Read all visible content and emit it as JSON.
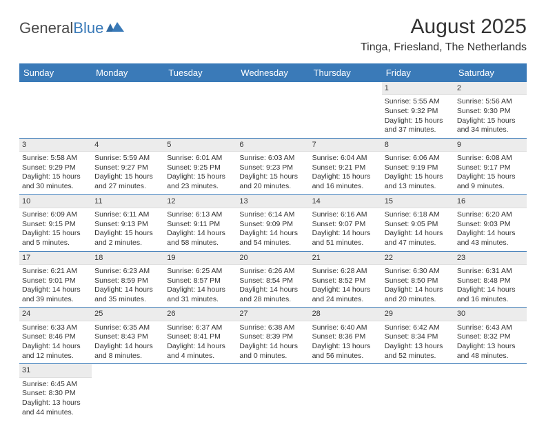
{
  "logo": {
    "text_a": "General",
    "text_b": "Blue"
  },
  "title": "August 2025",
  "location": "Tinga, Friesland, The Netherlands",
  "colors": {
    "header_bg": "#3a7ab8",
    "header_text": "#ffffff",
    "daynum_bg": "#ececec",
    "text": "#333333",
    "row_border": "#3a7ab8"
  },
  "day_names": [
    "Sunday",
    "Monday",
    "Tuesday",
    "Wednesday",
    "Thursday",
    "Friday",
    "Saturday"
  ],
  "weeks": [
    [
      {
        "n": "",
        "sr": "",
        "ss": "",
        "dl": ""
      },
      {
        "n": "",
        "sr": "",
        "ss": "",
        "dl": ""
      },
      {
        "n": "",
        "sr": "",
        "ss": "",
        "dl": ""
      },
      {
        "n": "",
        "sr": "",
        "ss": "",
        "dl": ""
      },
      {
        "n": "",
        "sr": "",
        "ss": "",
        "dl": ""
      },
      {
        "n": "1",
        "sr": "Sunrise: 5:55 AM",
        "ss": "Sunset: 9:32 PM",
        "dl": "Daylight: 15 hours and 37 minutes."
      },
      {
        "n": "2",
        "sr": "Sunrise: 5:56 AM",
        "ss": "Sunset: 9:30 PM",
        "dl": "Daylight: 15 hours and 34 minutes."
      }
    ],
    [
      {
        "n": "3",
        "sr": "Sunrise: 5:58 AM",
        "ss": "Sunset: 9:29 PM",
        "dl": "Daylight: 15 hours and 30 minutes."
      },
      {
        "n": "4",
        "sr": "Sunrise: 5:59 AM",
        "ss": "Sunset: 9:27 PM",
        "dl": "Daylight: 15 hours and 27 minutes."
      },
      {
        "n": "5",
        "sr": "Sunrise: 6:01 AM",
        "ss": "Sunset: 9:25 PM",
        "dl": "Daylight: 15 hours and 23 minutes."
      },
      {
        "n": "6",
        "sr": "Sunrise: 6:03 AM",
        "ss": "Sunset: 9:23 PM",
        "dl": "Daylight: 15 hours and 20 minutes."
      },
      {
        "n": "7",
        "sr": "Sunrise: 6:04 AM",
        "ss": "Sunset: 9:21 PM",
        "dl": "Daylight: 15 hours and 16 minutes."
      },
      {
        "n": "8",
        "sr": "Sunrise: 6:06 AM",
        "ss": "Sunset: 9:19 PM",
        "dl": "Daylight: 15 hours and 13 minutes."
      },
      {
        "n": "9",
        "sr": "Sunrise: 6:08 AM",
        "ss": "Sunset: 9:17 PM",
        "dl": "Daylight: 15 hours and 9 minutes."
      }
    ],
    [
      {
        "n": "10",
        "sr": "Sunrise: 6:09 AM",
        "ss": "Sunset: 9:15 PM",
        "dl": "Daylight: 15 hours and 5 minutes."
      },
      {
        "n": "11",
        "sr": "Sunrise: 6:11 AM",
        "ss": "Sunset: 9:13 PM",
        "dl": "Daylight: 15 hours and 2 minutes."
      },
      {
        "n": "12",
        "sr": "Sunrise: 6:13 AM",
        "ss": "Sunset: 9:11 PM",
        "dl": "Daylight: 14 hours and 58 minutes."
      },
      {
        "n": "13",
        "sr": "Sunrise: 6:14 AM",
        "ss": "Sunset: 9:09 PM",
        "dl": "Daylight: 14 hours and 54 minutes."
      },
      {
        "n": "14",
        "sr": "Sunrise: 6:16 AM",
        "ss": "Sunset: 9:07 PM",
        "dl": "Daylight: 14 hours and 51 minutes."
      },
      {
        "n": "15",
        "sr": "Sunrise: 6:18 AM",
        "ss": "Sunset: 9:05 PM",
        "dl": "Daylight: 14 hours and 47 minutes."
      },
      {
        "n": "16",
        "sr": "Sunrise: 6:20 AM",
        "ss": "Sunset: 9:03 PM",
        "dl": "Daylight: 14 hours and 43 minutes."
      }
    ],
    [
      {
        "n": "17",
        "sr": "Sunrise: 6:21 AM",
        "ss": "Sunset: 9:01 PM",
        "dl": "Daylight: 14 hours and 39 minutes."
      },
      {
        "n": "18",
        "sr": "Sunrise: 6:23 AM",
        "ss": "Sunset: 8:59 PM",
        "dl": "Daylight: 14 hours and 35 minutes."
      },
      {
        "n": "19",
        "sr": "Sunrise: 6:25 AM",
        "ss": "Sunset: 8:57 PM",
        "dl": "Daylight: 14 hours and 31 minutes."
      },
      {
        "n": "20",
        "sr": "Sunrise: 6:26 AM",
        "ss": "Sunset: 8:54 PM",
        "dl": "Daylight: 14 hours and 28 minutes."
      },
      {
        "n": "21",
        "sr": "Sunrise: 6:28 AM",
        "ss": "Sunset: 8:52 PM",
        "dl": "Daylight: 14 hours and 24 minutes."
      },
      {
        "n": "22",
        "sr": "Sunrise: 6:30 AM",
        "ss": "Sunset: 8:50 PM",
        "dl": "Daylight: 14 hours and 20 minutes."
      },
      {
        "n": "23",
        "sr": "Sunrise: 6:31 AM",
        "ss": "Sunset: 8:48 PM",
        "dl": "Daylight: 14 hours and 16 minutes."
      }
    ],
    [
      {
        "n": "24",
        "sr": "Sunrise: 6:33 AM",
        "ss": "Sunset: 8:46 PM",
        "dl": "Daylight: 14 hours and 12 minutes."
      },
      {
        "n": "25",
        "sr": "Sunrise: 6:35 AM",
        "ss": "Sunset: 8:43 PM",
        "dl": "Daylight: 14 hours and 8 minutes."
      },
      {
        "n": "26",
        "sr": "Sunrise: 6:37 AM",
        "ss": "Sunset: 8:41 PM",
        "dl": "Daylight: 14 hours and 4 minutes."
      },
      {
        "n": "27",
        "sr": "Sunrise: 6:38 AM",
        "ss": "Sunset: 8:39 PM",
        "dl": "Daylight: 14 hours and 0 minutes."
      },
      {
        "n": "28",
        "sr": "Sunrise: 6:40 AM",
        "ss": "Sunset: 8:36 PM",
        "dl": "Daylight: 13 hours and 56 minutes."
      },
      {
        "n": "29",
        "sr": "Sunrise: 6:42 AM",
        "ss": "Sunset: 8:34 PM",
        "dl": "Daylight: 13 hours and 52 minutes."
      },
      {
        "n": "30",
        "sr": "Sunrise: 6:43 AM",
        "ss": "Sunset: 8:32 PM",
        "dl": "Daylight: 13 hours and 48 minutes."
      }
    ],
    [
      {
        "n": "31",
        "sr": "Sunrise: 6:45 AM",
        "ss": "Sunset: 8:30 PM",
        "dl": "Daylight: 13 hours and 44 minutes."
      },
      {
        "n": "",
        "sr": "",
        "ss": "",
        "dl": ""
      },
      {
        "n": "",
        "sr": "",
        "ss": "",
        "dl": ""
      },
      {
        "n": "",
        "sr": "",
        "ss": "",
        "dl": ""
      },
      {
        "n": "",
        "sr": "",
        "ss": "",
        "dl": ""
      },
      {
        "n": "",
        "sr": "",
        "ss": "",
        "dl": ""
      },
      {
        "n": "",
        "sr": "",
        "ss": "",
        "dl": ""
      }
    ]
  ]
}
